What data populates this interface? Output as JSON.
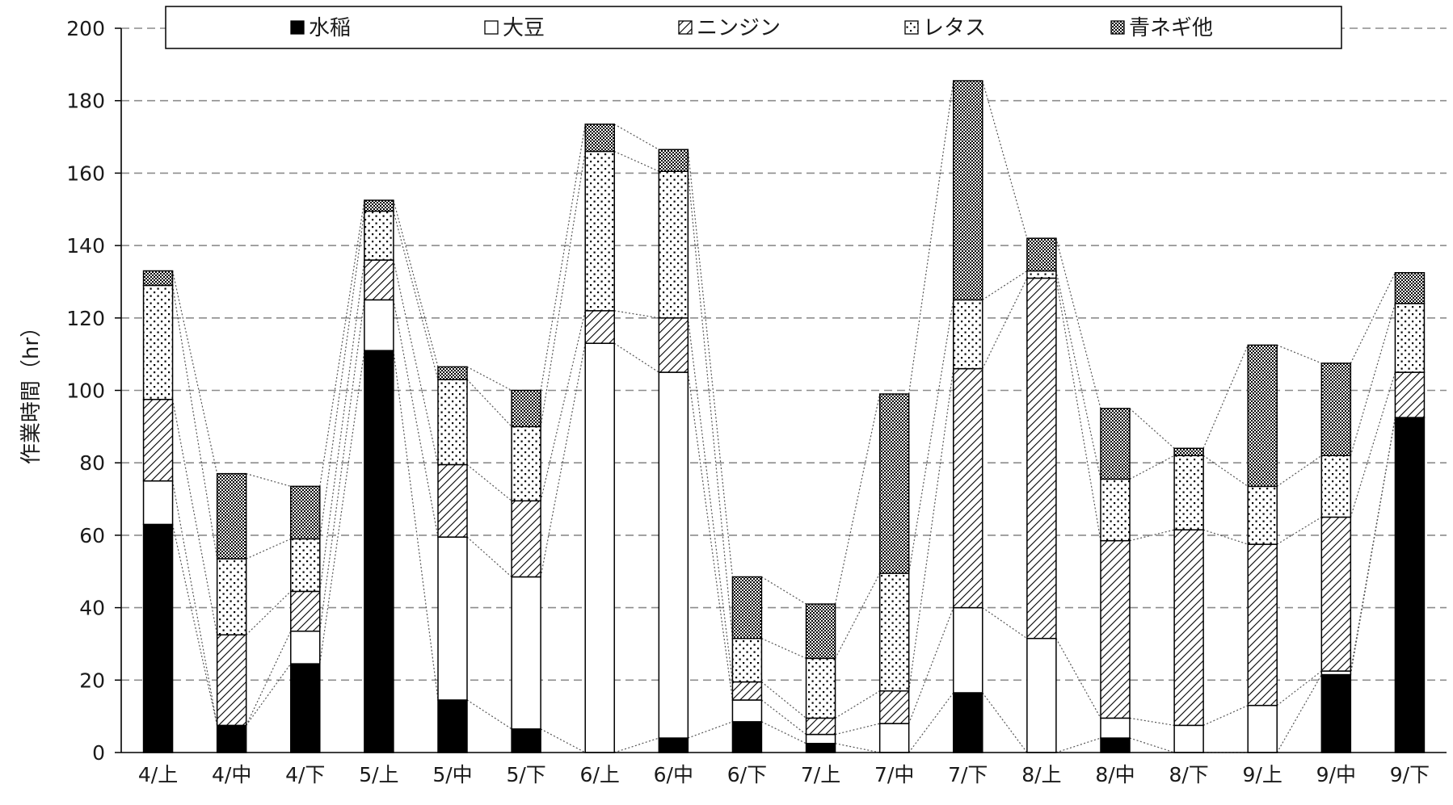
{
  "chart_data": {
    "type": "bar",
    "stacked": true,
    "ylabel": "作業時間（hr）",
    "xlabel": "",
    "ylim": [
      0,
      200
    ],
    "yticks": [
      0,
      20,
      40,
      60,
      80,
      100,
      120,
      140,
      160,
      180,
      200
    ],
    "grid": "horizontal-dashed",
    "legend_position": "top",
    "series_connector_lines": true,
    "categories": [
      "4/上",
      "4/中",
      "4/下",
      "5/上",
      "5/中",
      "5/下",
      "6/上",
      "6/中",
      "6/下",
      "7/上",
      "7/中",
      "7/下",
      "8/上",
      "8/中",
      "8/下",
      "9/上",
      "9/中",
      "9/下"
    ],
    "series": [
      {
        "name": "水稲",
        "pattern": "solid-black",
        "values": [
          63,
          7.5,
          24.5,
          111,
          14.5,
          6.5,
          0,
          4,
          8.5,
          2.5,
          0,
          16.5,
          0,
          4,
          0,
          0,
          21.5,
          92.5
        ]
      },
      {
        "name": "大豆",
        "pattern": "white",
        "values": [
          12,
          0,
          9,
          14,
          45,
          42,
          113,
          101,
          6,
          2.5,
          8,
          23.5,
          31.5,
          5.5,
          7.5,
          13,
          1,
          0
        ]
      },
      {
        "name": "ニンジン",
        "pattern": "diagonal-hatch",
        "values": [
          22.5,
          25,
          11,
          11,
          20,
          21,
          9,
          15,
          5,
          4.5,
          9,
          66,
          99.5,
          49,
          54,
          44.5,
          42.5,
          12.5
        ]
      },
      {
        "name": "レタス",
        "pattern": "dots",
        "values": [
          31.5,
          21,
          14.5,
          13.5,
          23.5,
          20.5,
          44,
          40.5,
          12,
          16.5,
          32.5,
          19,
          2,
          17,
          20.5,
          16,
          17,
          19
        ]
      },
      {
        "name": "青ネギ他",
        "pattern": "crosshatch",
        "values": [
          4,
          23.5,
          14.5,
          3,
          3.5,
          10,
          7.5,
          6,
          17,
          15,
          49.5,
          60.5,
          9,
          19.5,
          2,
          39,
          25.5,
          8.5
        ]
      }
    ]
  },
  "colors": {
    "bar_outline": "#000000",
    "grid": "#8c8c8c",
    "axis": "#000000"
  }
}
